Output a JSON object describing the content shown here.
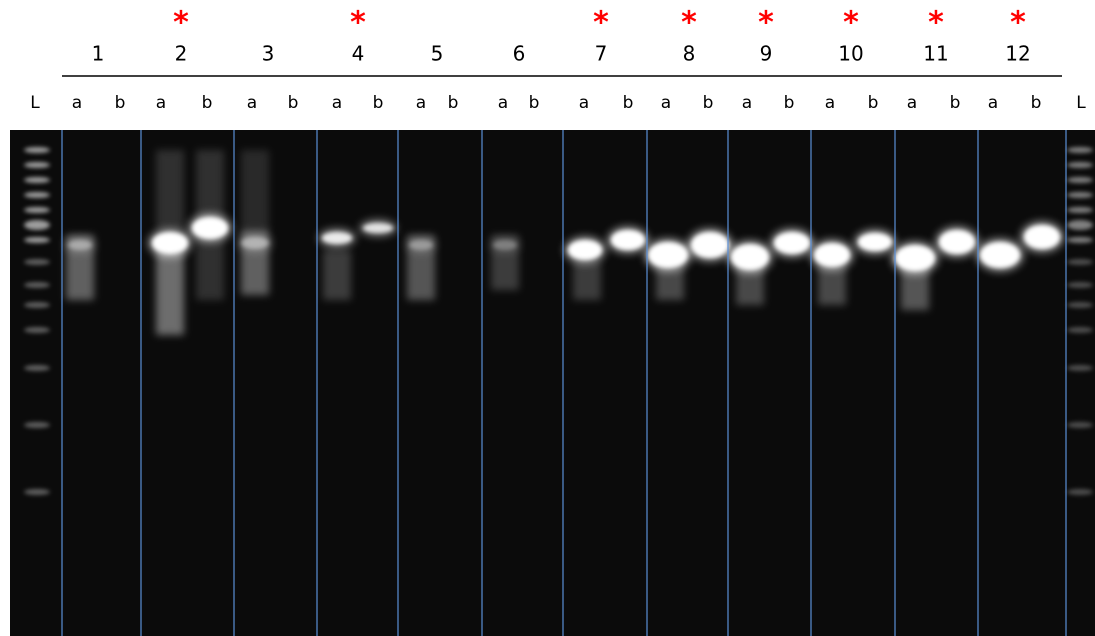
{
  "samples": [
    {
      "number": "1"
    },
    {
      "number": "2",
      "star": "*"
    },
    {
      "number": "3"
    },
    {
      "number": "4",
      "star": "*"
    },
    {
      "number": "5"
    },
    {
      "number": "6"
    },
    {
      "number": "7",
      "star": "*"
    },
    {
      "number": "8",
      "star": "*"
    },
    {
      "number": "9",
      "star": "*"
    },
    {
      "number": "10",
      "star": "*"
    },
    {
      "number": "11",
      "star": "*"
    },
    {
      "number": "12",
      "star": "*"
    }
  ],
  "lane_labels": [
    "L",
    "a",
    "b",
    "a",
    "b",
    "a",
    "b",
    "a",
    "b",
    "a",
    "b",
    "a",
    "b",
    "a",
    "b",
    "a",
    "b",
    "a",
    "b",
    "a",
    "b",
    "a",
    "b",
    "a",
    "b",
    "L"
  ]
}
